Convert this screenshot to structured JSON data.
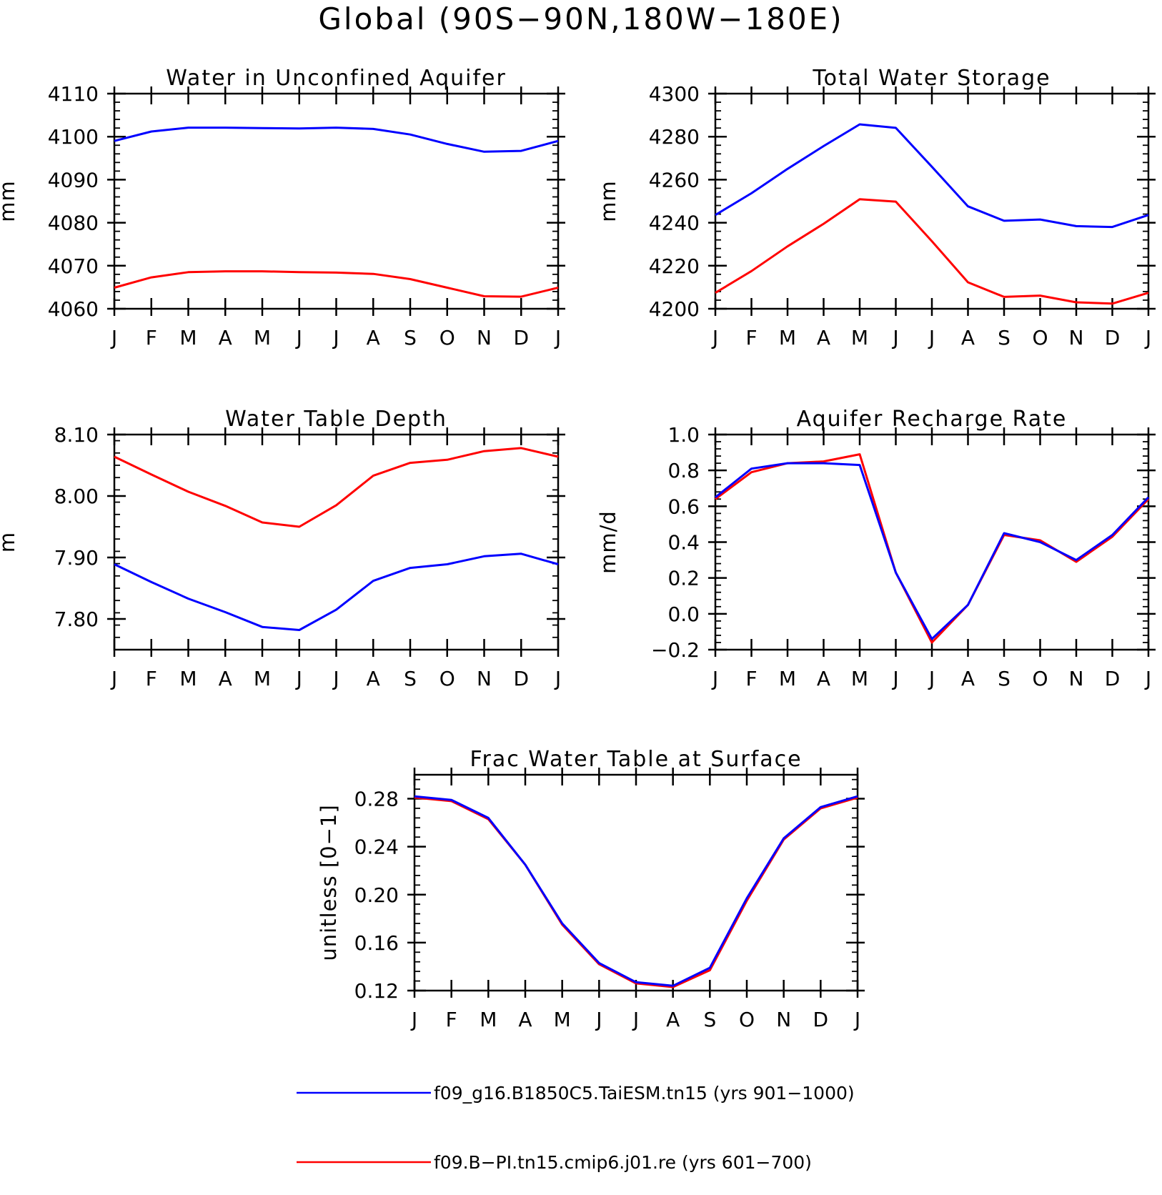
{
  "page": {
    "title": "Global (90S−90N,180W−180E)"
  },
  "colors": {
    "series_1": "#0000ff",
    "series_2": "#ff0000",
    "axis": "#000000"
  },
  "legend": {
    "placement": "bottom",
    "entries": [
      {
        "label": "f09_g16.B1850C5.TaiESM.tn15 (yrs 901−1000)",
        "color": "#0000ff"
      },
      {
        "label": "f09.B−PI.tn15.cmip6.j01.re (yrs 601−700)",
        "color": "#ff0000"
      }
    ]
  },
  "chart_data": [
    {
      "type": "line",
      "title": "Water in Unconfined Aquifer",
      "ylabel": "mm",
      "categories": [
        "J",
        "F",
        "M",
        "A",
        "M",
        "J",
        "J",
        "A",
        "S",
        "O",
        "N",
        "D",
        "J"
      ],
      "yticks": [
        "4110",
        "4100",
        "4090",
        "4080",
        "4070",
        "4060"
      ],
      "ylim": [
        4060,
        4110
      ],
      "series": [
        {
          "color": "#0000ff",
          "values": [
            4099.0,
            4101.2,
            4102.1,
            4102.1,
            4102.0,
            4101.9,
            4102.1,
            4101.8,
            4100.5,
            4098.3,
            4096.5,
            4096.7,
            4099.0
          ]
        },
        {
          "color": "#ff0000",
          "values": [
            4064.9,
            4067.3,
            4068.5,
            4068.7,
            4068.7,
            4068.5,
            4068.4,
            4068.1,
            4066.9,
            4064.9,
            4062.9,
            4062.8,
            4064.9
          ]
        }
      ]
    },
    {
      "type": "line",
      "title": "Total Water Storage",
      "ylabel": "mm",
      "categories": [
        "J",
        "F",
        "M",
        "A",
        "M",
        "J",
        "J",
        "A",
        "S",
        "O",
        "N",
        "D",
        "J"
      ],
      "yticks": [
        "4300",
        "4280",
        "4260",
        "4240",
        "4220",
        "4200"
      ],
      "ylim": [
        4200,
        4300
      ],
      "series": [
        {
          "color": "#0000ff",
          "values": [
            4243.6,
            4253.7,
            4265.0,
            4275.6,
            4285.7,
            4284.1,
            4266.0,
            4247.6,
            4240.9,
            4241.5,
            4238.4,
            4238.0,
            4243.6
          ]
        },
        {
          "color": "#ff0000",
          "values": [
            4207.4,
            4217.5,
            4229.0,
            4239.5,
            4250.9,
            4249.8,
            4231.4,
            4212.3,
            4205.5,
            4206.1,
            4203.0,
            4202.4,
            4207.4
          ]
        }
      ]
    },
    {
      "type": "line",
      "title": "Water Table Depth",
      "ylabel": "m",
      "categories": [
        "J",
        "F",
        "M",
        "A",
        "M",
        "J",
        "J",
        "A",
        "S",
        "O",
        "N",
        "D",
        "J"
      ],
      "yticks": [
        "8.10",
        "8.00",
        "7.90",
        "7.80"
      ],
      "ylim": [
        7.75,
        8.1
      ],
      "series": [
        {
          "color": "#0000ff",
          "values": [
            7.889,
            7.86,
            7.833,
            7.811,
            7.787,
            7.782,
            7.815,
            7.862,
            7.883,
            7.889,
            7.902,
            7.906,
            7.889
          ]
        },
        {
          "color": "#ff0000",
          "values": [
            8.064,
            8.035,
            8.007,
            7.984,
            7.957,
            7.95,
            7.985,
            8.033,
            8.054,
            8.059,
            8.073,
            8.078,
            8.064
          ]
        }
      ]
    },
    {
      "type": "line",
      "title": "Aquifer Recharge Rate",
      "ylabel": "mm/d",
      "categories": [
        "J",
        "F",
        "M",
        "A",
        "M",
        "J",
        "J",
        "A",
        "S",
        "O",
        "N",
        "D",
        "J"
      ],
      "yticks": [
        "1.0",
        "0.8",
        "0.6",
        "0.4",
        "0.2",
        "0.0",
        "−0.2"
      ],
      "ylim": [
        -0.2,
        1.0
      ],
      "series": [
        {
          "color": "#ff0000",
          "values": [
            0.64,
            0.79,
            0.84,
            0.85,
            0.89,
            0.23,
            -0.16,
            0.05,
            0.44,
            0.41,
            0.29,
            0.43,
            0.64
          ]
        },
        {
          "color": "#0000ff",
          "values": [
            0.65,
            0.81,
            0.84,
            0.84,
            0.83,
            0.23,
            -0.14,
            0.05,
            0.45,
            0.4,
            0.3,
            0.44,
            0.65
          ]
        }
      ]
    },
    {
      "type": "line",
      "title": "Frac Water Table at Surface",
      "ylabel": "unitless [0−1]",
      "categories": [
        "J",
        "F",
        "M",
        "A",
        "M",
        "J",
        "J",
        "A",
        "S",
        "O",
        "N",
        "D",
        "J"
      ],
      "yticks": [
        "0.28",
        "0.24",
        "0.20",
        "0.16",
        "0.12"
      ],
      "ylim": [
        0.12,
        0.3
      ],
      "series": [
        {
          "color": "#ff0000",
          "values": [
            0.281,
            0.278,
            0.263,
            0.225,
            0.175,
            0.142,
            0.126,
            0.123,
            0.137,
            0.195,
            0.246,
            0.272,
            0.281
          ]
        },
        {
          "color": "#0000ff",
          "values": [
            0.282,
            0.279,
            0.264,
            0.225,
            0.176,
            0.143,
            0.127,
            0.124,
            0.139,
            0.197,
            0.247,
            0.273,
            0.282
          ]
        }
      ]
    }
  ]
}
